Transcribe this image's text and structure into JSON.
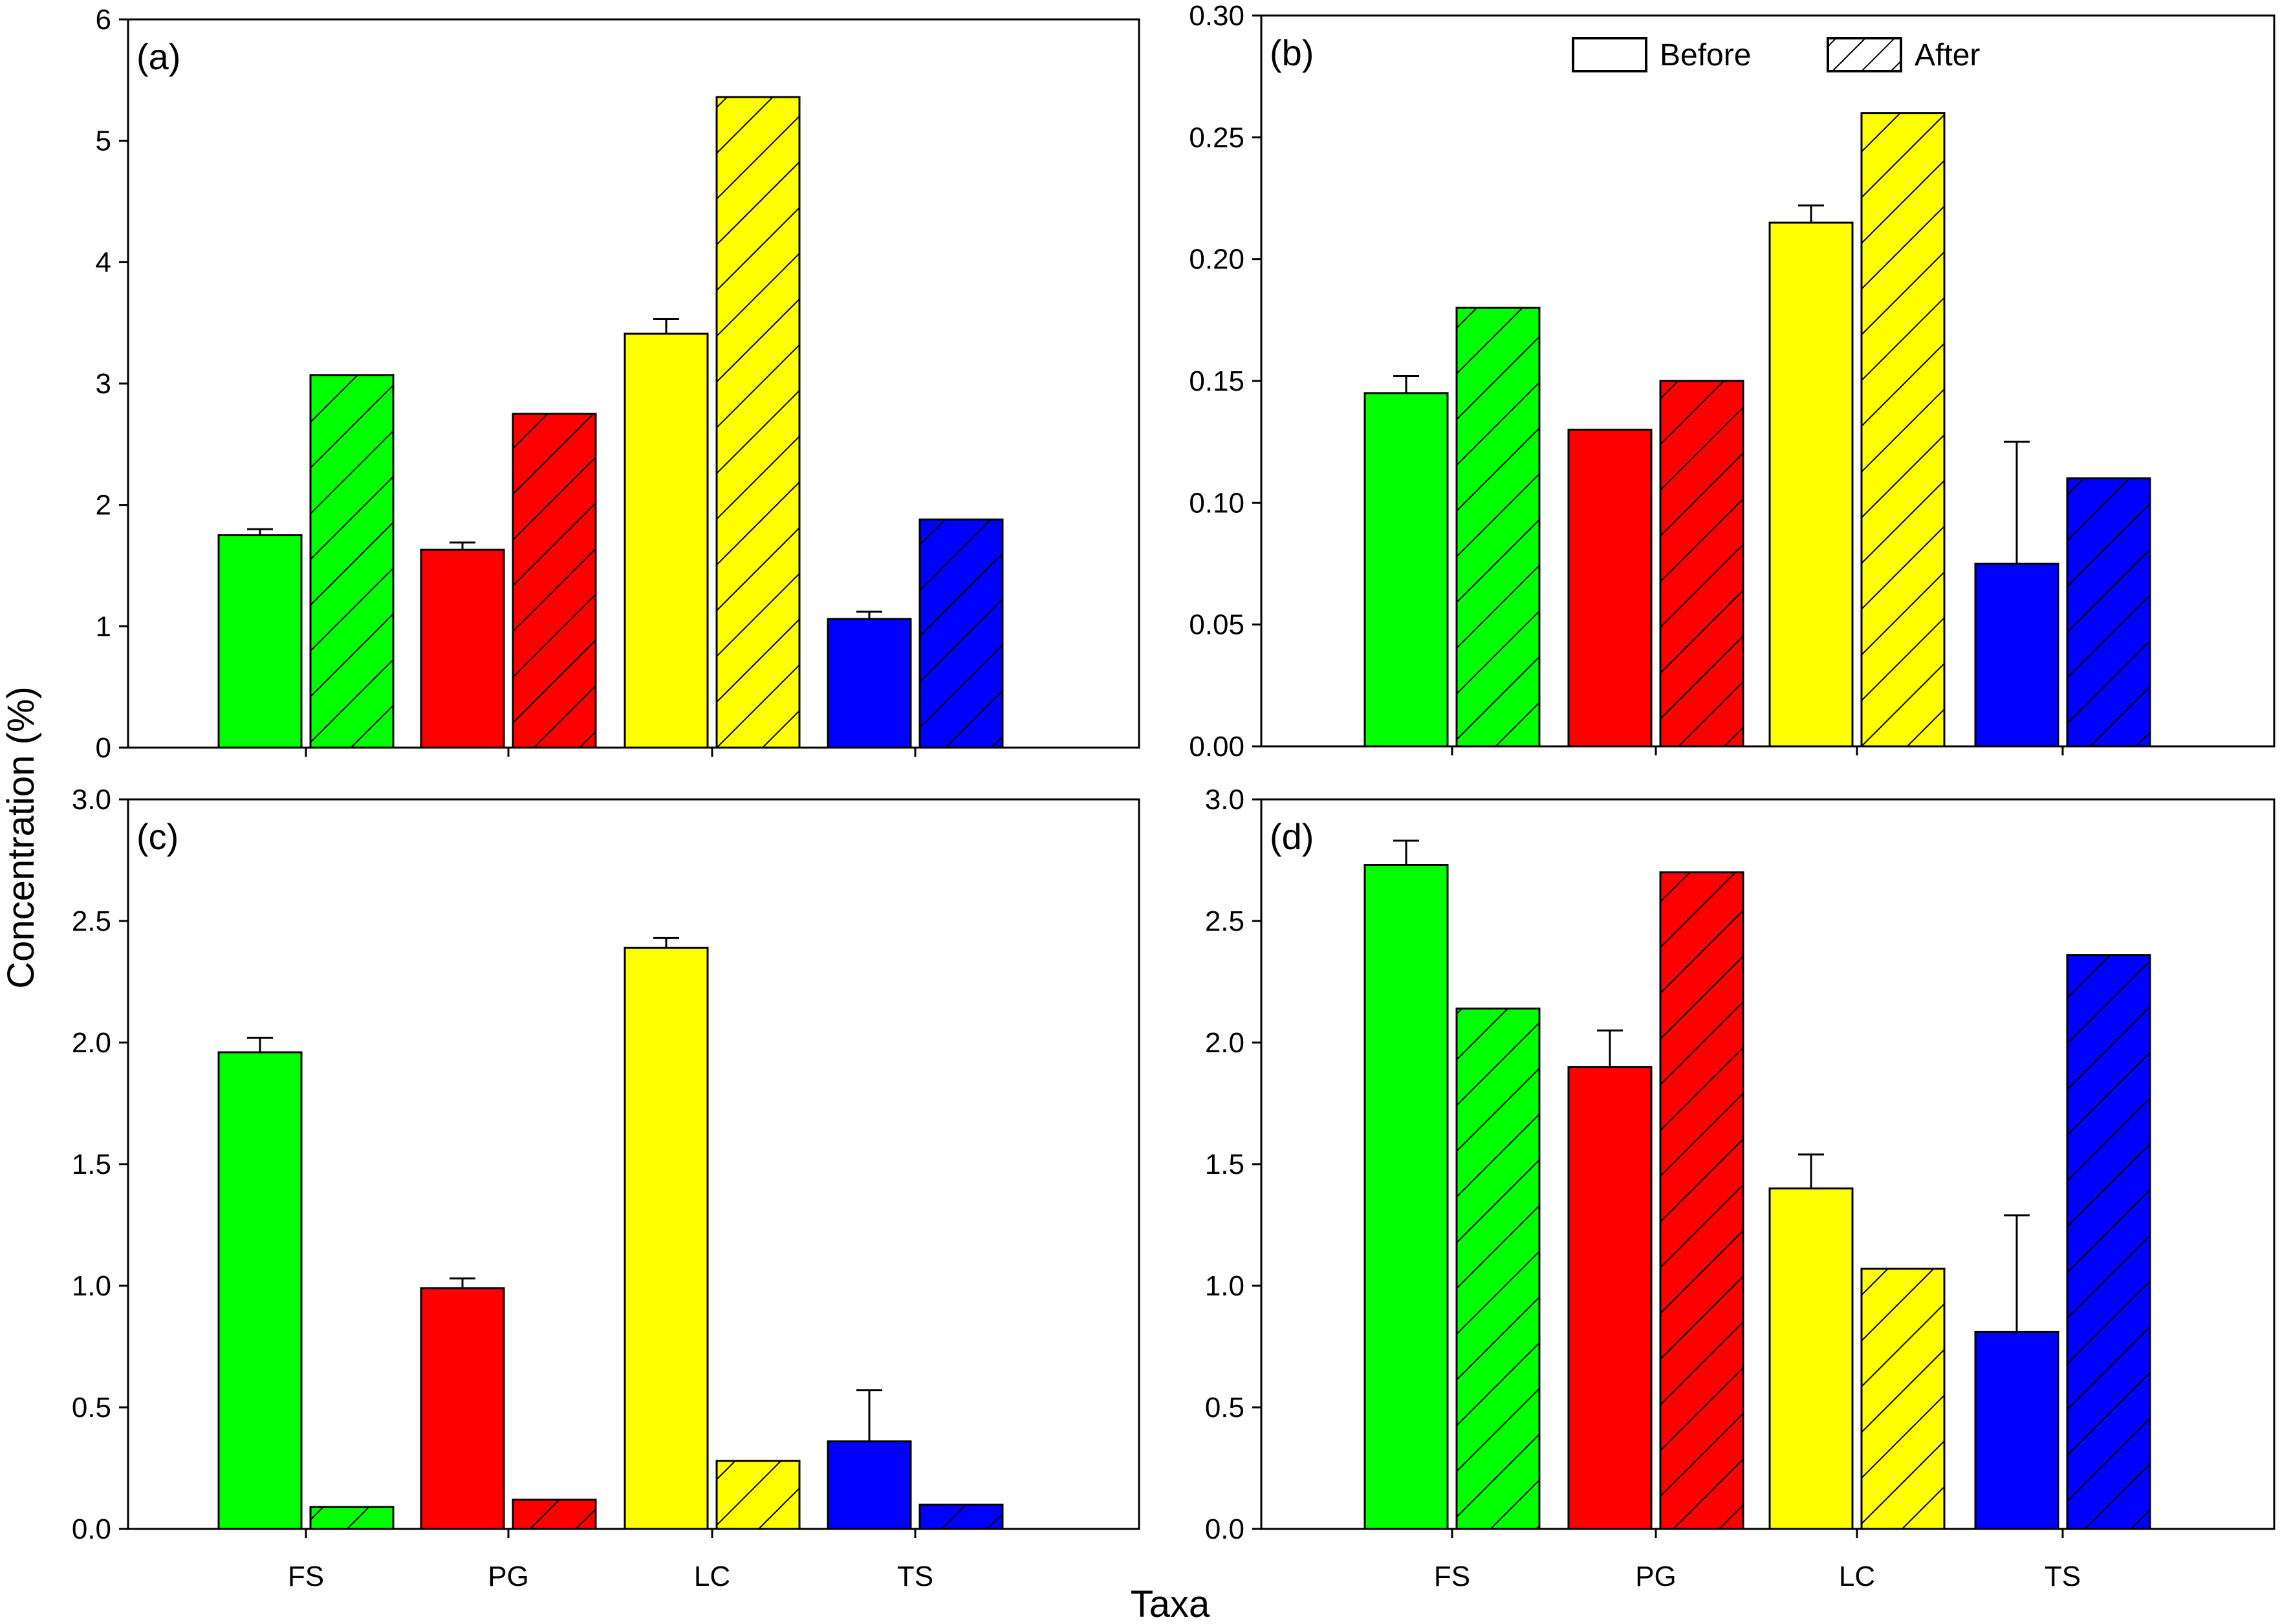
{
  "chart_data": {
    "type": "bar",
    "categories": [
      "FS",
      "PG",
      "LC",
      "TS"
    ],
    "xlabel": "Taxa",
    "ylabel": "Concentration (%)",
    "legend": {
      "placement": "top-right",
      "entries": [
        {
          "name": "Before",
          "pattern": "solid"
        },
        {
          "name": "After",
          "pattern": "hatched"
        }
      ]
    },
    "category_colors": {
      "FS": "#00ff00",
      "PG": "#ff0000",
      "LC": "#ffff00",
      "TS": "#0000ff"
    },
    "panels": [
      {
        "id": "a",
        "label": "(a)",
        "ylim": [
          0,
          6
        ],
        "yticks": [
          "0",
          "1",
          "2",
          "3",
          "4",
          "5",
          "6"
        ],
        "series": [
          {
            "name": "Before",
            "values": [
              1.75,
              1.63,
              3.41,
              1.06
            ],
            "errors": [
              0.05,
              0.06,
              0.12,
              0.06
            ]
          },
          {
            "name": "After",
            "values": [
              3.07,
              2.75,
              5.36,
              1.88
            ],
            "errors": [
              0,
              0,
              0,
              0
            ]
          }
        ]
      },
      {
        "id": "b",
        "label": "(b)",
        "ylim": [
          0,
          0.3
        ],
        "yticks": [
          "0.00",
          "0.05",
          "0.10",
          "0.15",
          "0.20",
          "0.25",
          "0.30"
        ],
        "series": [
          {
            "name": "Before",
            "values": [
              0.145,
              0.13,
              0.215,
              0.075
            ],
            "errors": [
              0.007,
              0,
              0.007,
              0.05
            ]
          },
          {
            "name": "After",
            "values": [
              0.18,
              0.15,
              0.26,
              0.11
            ],
            "errors": [
              0,
              0,
              0,
              0
            ]
          }
        ]
      },
      {
        "id": "c",
        "label": "(c)",
        "ylim": [
          0,
          3.0
        ],
        "yticks": [
          "0.0",
          "0.5",
          "1.0",
          "1.5",
          "2.0",
          "2.5",
          "3.0"
        ],
        "series": [
          {
            "name": "Before",
            "values": [
              1.96,
              0.99,
              2.39,
              0.36
            ],
            "errors": [
              0.06,
              0.04,
              0.04,
              0.21
            ]
          },
          {
            "name": "After",
            "values": [
              0.09,
              0.12,
              0.28,
              0.1
            ],
            "errors": [
              0,
              0,
              0,
              0
            ]
          }
        ]
      },
      {
        "id": "d",
        "label": "(d)",
        "ylim": [
          0,
          3.0
        ],
        "yticks": [
          "0.0",
          "0.5",
          "1.0",
          "1.5",
          "2.0",
          "2.5",
          "3.0"
        ],
        "series": [
          {
            "name": "Before",
            "values": [
              2.73,
              1.9,
              1.4,
              0.81
            ],
            "errors": [
              0.1,
              0.15,
              0.14,
              0.48
            ]
          },
          {
            "name": "After",
            "values": [
              2.14,
              2.7,
              1.07,
              2.36
            ],
            "errors": [
              0,
              0,
              0,
              0
            ]
          }
        ]
      }
    ]
  }
}
